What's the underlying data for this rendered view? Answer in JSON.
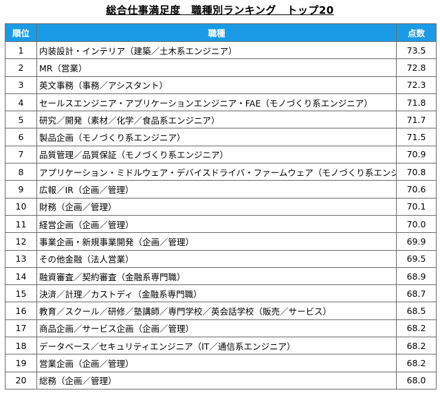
{
  "title": "総合仕事満足度　職種別ランキング　トップ20",
  "headers": {
    "rank": "順位",
    "job": "職種",
    "score": "点数"
  },
  "rows": [
    {
      "rank": "1",
      "job": "内装設計・インテリア（建築／土木系エンジニア）",
      "score": "73.5"
    },
    {
      "rank": "2",
      "job": "MR（営業）",
      "score": "72.8"
    },
    {
      "rank": "3",
      "job": "英文事務（事務／アシスタント）",
      "score": "72.3"
    },
    {
      "rank": "4",
      "job": "セールスエンジニア・アプリケーションエンジニア・FAE（モノづくり系エンジニア）",
      "score": "71.8"
    },
    {
      "rank": "5",
      "job": "研究／開発（素材／化学／食品系エンジニア）",
      "score": "71.7"
    },
    {
      "rank": "6",
      "job": "製品企画（モノづくり系エンジニア）",
      "score": "71.5"
    },
    {
      "rank": "7",
      "job": "品質管理／品質保証（モノづくり系エンジニア）",
      "score": "70.9"
    },
    {
      "rank": "8",
      "job": "アプリケーション・ミドルウェア・デバイスドライバ・ファームウェア（モノづくり系エンジニア）",
      "score": "70.8"
    },
    {
      "rank": "9",
      "job": "広報／IR（企画／管理）",
      "score": "70.6"
    },
    {
      "rank": "10",
      "job": "財務（企画／管理）",
      "score": "70.1"
    },
    {
      "rank": "11",
      "job": "経営企画（企画／管理）",
      "score": "70.0"
    },
    {
      "rank": "12",
      "job": "事業企画・新規事業開発（企画／管理）",
      "score": "69.9"
    },
    {
      "rank": "13",
      "job": "その他金融（法人営業）",
      "score": "69.5"
    },
    {
      "rank": "14",
      "job": "融資審査／契約審査（金融系専門職）",
      "score": "68.9"
    },
    {
      "rank": "15",
      "job": "決済／計理／カストディ（金融系専門職）",
      "score": "68.7"
    },
    {
      "rank": "16",
      "job": "教育／スクール／研修／塾講師／専門学校／英会話学校（販売／サービス）",
      "score": "68.5"
    },
    {
      "rank": "17",
      "job": "商品企画／サービス企画（企画／管理）",
      "score": "68.2"
    },
    {
      "rank": "18",
      "job": "データベース／セキュリティエンジニア（IT／通信系エンジニア）",
      "score": "68.2"
    },
    {
      "rank": "19",
      "job": "営業企画（企画／管理）",
      "score": "68.2"
    },
    {
      "rank": "20",
      "job": "総務（企画／管理）",
      "score": "68.0"
    }
  ],
  "colors": {
    "header_bg": "#1b9be6",
    "header_text": "#ffffff",
    "border": "#6a6a6a"
  }
}
